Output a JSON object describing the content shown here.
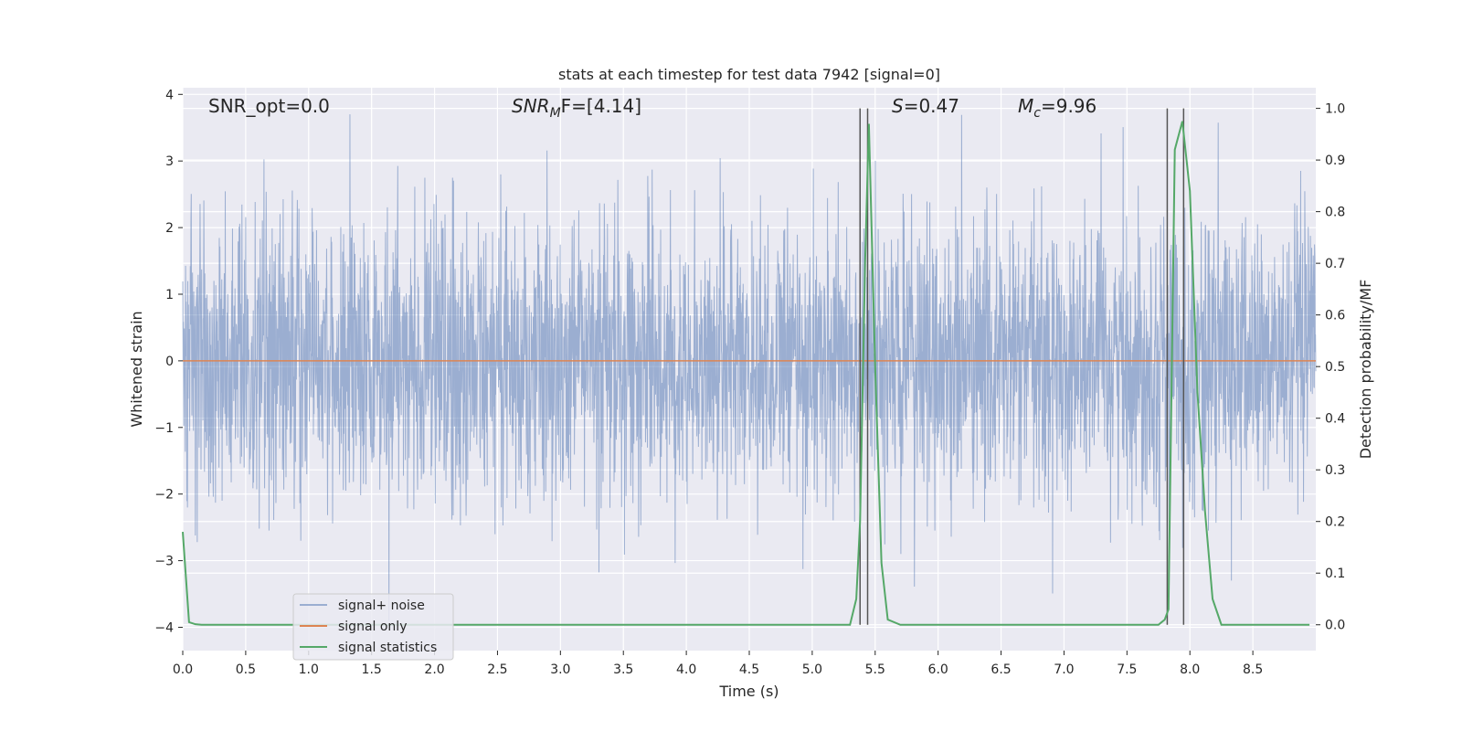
{
  "chart_data": {
    "type": "line",
    "title": "stats at each timestep for test data 7942 [signal=0]",
    "xlabel": "Time (s)",
    "ylabel_left": "Whitened strain",
    "ylabel_right": "Detection probability/MF",
    "xlim": [
      0.0,
      9.0
    ],
    "ylim_left": [
      -4.35,
      4.1
    ],
    "ylim_right": [
      -0.05,
      1.04
    ],
    "x_ticks": [
      "0.0",
      "0.5",
      "1.0",
      "1.5",
      "2.0",
      "2.5",
      "3.0",
      "3.5",
      "4.0",
      "4.5",
      "5.0",
      "5.5",
      "6.0",
      "6.5",
      "7.0",
      "7.5",
      "8.0",
      "8.5"
    ],
    "y_ticks_left": [
      "−4",
      "−3",
      "−2",
      "−1",
      "0",
      "1",
      "2",
      "3",
      "4"
    ],
    "y_ticks_right": [
      "0.0",
      "0.1",
      "0.2",
      "0.3",
      "0.4",
      "0.5",
      "0.6",
      "0.7",
      "0.8",
      "0.9",
      "1.0"
    ],
    "grid": true,
    "legend_position": "lower-left",
    "annotations": {
      "snr_opt": "SNR_opt=0.0",
      "snr_mf_base": "SNR",
      "snr_mf_sub": "M",
      "snr_mf_rest": "F=[4.14]",
      "s_var": "S",
      "s_val": "=0.47",
      "mc_var": "M",
      "mc_sub": "c",
      "mc_val": "=9.96"
    },
    "series": [
      {
        "name": "signal+ noise",
        "color": "#4c72b0",
        "opacity": 0.5,
        "description_values": "whitened noise, range approx -3.9 to 3.7"
      },
      {
        "name": "signal only",
        "color": "#dd8452",
        "x": [
          0.0,
          9.0
        ],
        "y": [
          0.0,
          0.0
        ]
      },
      {
        "name": "signal statistics",
        "color": "#55a868",
        "x": [
          0.0,
          0.05,
          0.1,
          0.15,
          0.5,
          1.0,
          2.0,
          3.0,
          4.0,
          5.0,
          5.3,
          5.35,
          5.38,
          5.42,
          5.45,
          5.5,
          5.55,
          5.6,
          5.7,
          6.0,
          6.5,
          7.0,
          7.5,
          7.75,
          7.8,
          7.83,
          7.88,
          7.94,
          8.0,
          8.06,
          8.12,
          8.18,
          8.25,
          8.3,
          8.5,
          8.7,
          8.95
        ],
        "y": [
          0.18,
          0.005,
          0.001,
          0.0,
          0.0,
          0.0,
          0.0,
          0.0,
          0.0,
          0.0,
          0.0,
          0.05,
          0.2,
          0.7,
          0.97,
          0.5,
          0.12,
          0.01,
          0.0,
          0.0,
          0.0,
          0.0,
          0.0,
          0.0,
          0.01,
          0.03,
          0.92,
          0.975,
          0.84,
          0.45,
          0.22,
          0.05,
          0.0,
          0.0,
          0.0,
          0.0,
          0.0
        ]
      }
    ],
    "vlines": {
      "color": "#555555",
      "x": [
        5.38,
        5.44,
        7.82,
        7.95
      ],
      "y_top_right": 1.0
    }
  }
}
